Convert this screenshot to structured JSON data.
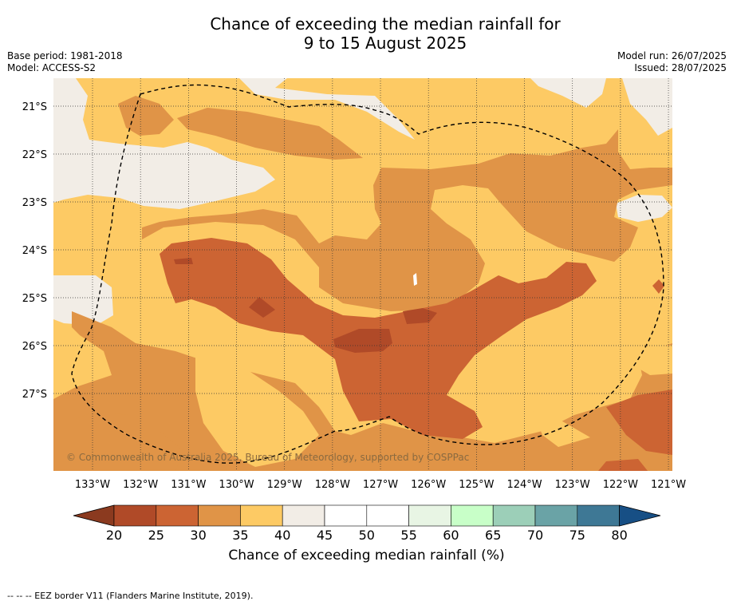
{
  "header": {
    "title_line1": "Chance of exceeding the median rainfall for",
    "title_line2": "9 to 15 August 2025",
    "base_period": "Base period: 1981-2018",
    "model": "Model: ACCESS-S2",
    "model_run": "Model run: 26/07/2025",
    "issued": "Issued: 28/07/2025"
  },
  "map": {
    "lon_labels": [
      "133°W",
      "132°W",
      "131°W",
      "130°W",
      "129°W",
      "128°W",
      "127°W",
      "126°W",
      "125°W",
      "124°W",
      "123°W",
      "122°W",
      "121°W"
    ],
    "lat_labels": [
      "21°S",
      "22°S",
      "23°S",
      "24°S",
      "25°S",
      "26°S",
      "27°S"
    ],
    "copyright": "© Commonwealth of Australia 2025, Bureau of Meteorology, supported by COSPPac",
    "colors": {
      "lt20": "#8b3a1f",
      "20-25": "#b04a28",
      "25-30": "#cc6433",
      "30-35": "#e09447",
      "35-40": "#fdca64",
      "40-45": "#f2ede6",
      "45-50": "#ffffff",
      "50-55": "#ffffff",
      "55-60": "#e8f5e4",
      "60-65": "#c8ffc8",
      "65-70": "#9ccfb8",
      "70-75": "#6aa3a6",
      "75-80": "#3e7895",
      "gt80": "#174f85"
    }
  },
  "colorbar": {
    "ticks": [
      "20",
      "25",
      "30",
      "35",
      "40",
      "45",
      "50",
      "55",
      "60",
      "65",
      "70",
      "75",
      "80"
    ],
    "label": "Chance of exceeding median rainfall (%)"
  },
  "footnote": "--  --  -- EEZ border V11 (Flanders Marine Institute, 2019)."
}
